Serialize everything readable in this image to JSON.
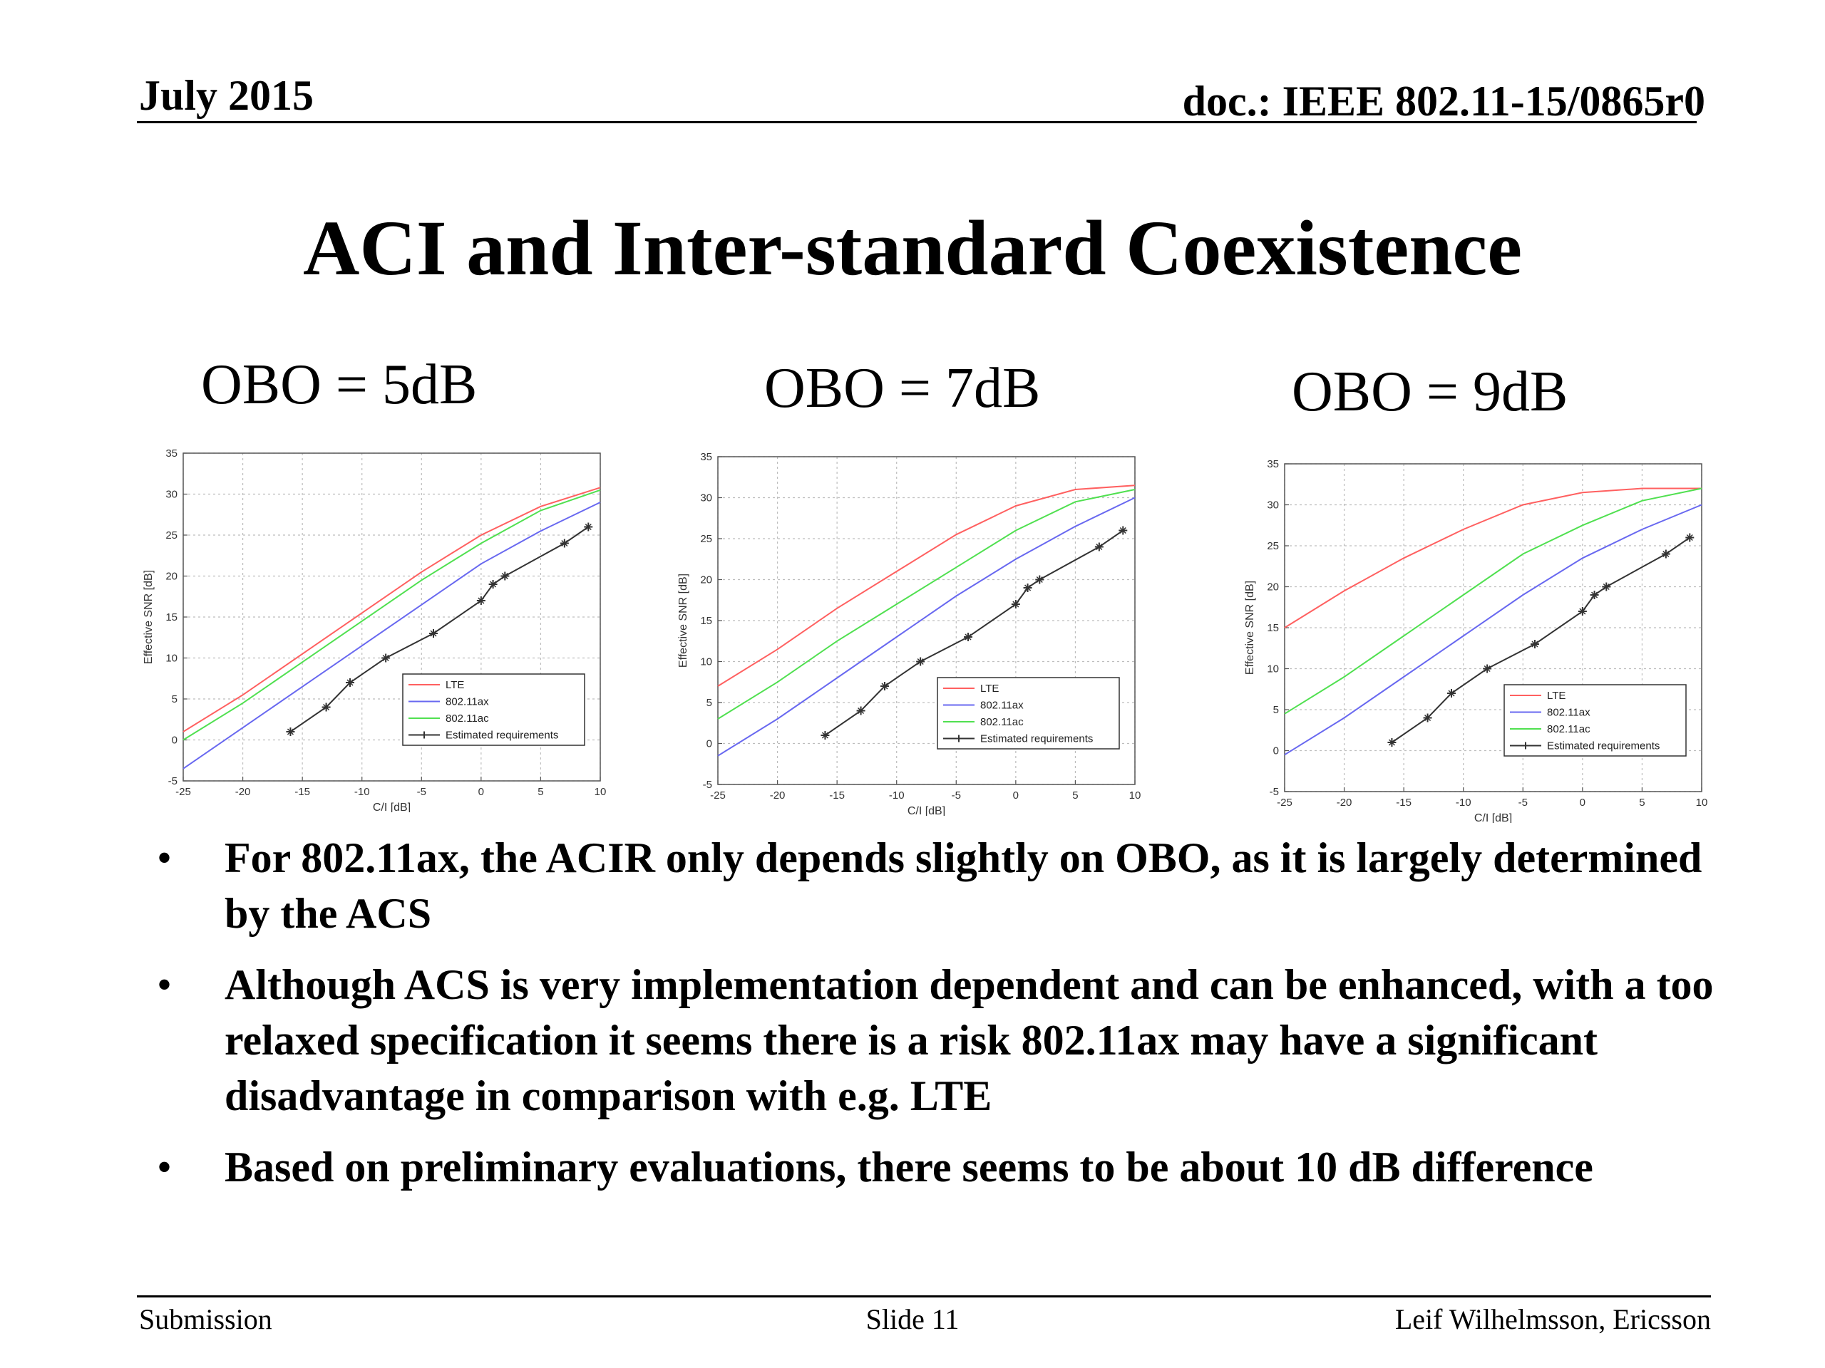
{
  "header": {
    "date": "July 2015",
    "doc": "doc.: IEEE 802.11-15/0865r0"
  },
  "title": "ACI and Inter-standard Coexistence",
  "panels": [
    {
      "heading": "OBO = 5dB"
    },
    {
      "heading": "OBO = 7dB"
    },
    {
      "heading": "OBO = 9dB"
    }
  ],
  "chart_data": [
    {
      "type": "line",
      "title": "OBO = 5dB",
      "xlabel": "C/I [dB]",
      "ylabel": "Effective SNR [dB]",
      "xlim": [
        -25,
        10
      ],
      "ylim": [
        -5,
        35
      ],
      "xticks": [
        -25,
        -20,
        -15,
        -10,
        -5,
        0,
        5,
        10
      ],
      "yticks": [
        -5,
        0,
        5,
        10,
        15,
        20,
        25,
        30,
        35
      ],
      "grid": true,
      "legend_position": "lower-right",
      "series": [
        {
          "name": "LTE",
          "color": "#ff6060",
          "marker": "none",
          "x": [
            -25,
            -20,
            -15,
            -10,
            -5,
            0,
            5,
            10
          ],
          "y": [
            1,
            5.5,
            10.5,
            15.5,
            20.5,
            25,
            28.5,
            30.8
          ]
        },
        {
          "name": "802.11ax",
          "color": "#6868f0",
          "marker": "none",
          "x": [
            -25,
            -20,
            -15,
            -10,
            -5,
            0,
            5,
            10
          ],
          "y": [
            -3.5,
            1.5,
            6.5,
            11.5,
            16.5,
            21.5,
            25.5,
            29
          ]
        },
        {
          "name": "802.11ac",
          "color": "#50e050",
          "marker": "none",
          "x": [
            -25,
            -20,
            -15,
            -10,
            -5,
            0,
            5,
            10
          ],
          "y": [
            0,
            4.5,
            9.5,
            14.5,
            19.5,
            24,
            28,
            30.5
          ]
        },
        {
          "name": "Estimated requirements",
          "color": "#333333",
          "marker": "star",
          "x": [
            -16,
            -13,
            -11,
            -8,
            -4,
            0,
            1,
            2,
            7,
            9
          ],
          "y": [
            1,
            4,
            7,
            10,
            13,
            17,
            19,
            20,
            24,
            26
          ]
        }
      ]
    },
    {
      "type": "line",
      "title": "OBO = 7dB",
      "xlabel": "C/I [dB]",
      "ylabel": "Effective SNR [dB]",
      "xlim": [
        -25,
        10
      ],
      "ylim": [
        -5,
        35
      ],
      "xticks": [
        -25,
        -20,
        -15,
        -10,
        -5,
        0,
        5,
        10
      ],
      "yticks": [
        -5,
        0,
        5,
        10,
        15,
        20,
        25,
        30,
        35
      ],
      "grid": true,
      "legend_position": "lower-right",
      "series": [
        {
          "name": "LTE",
          "color": "#ff6060",
          "marker": "none",
          "x": [
            -25,
            -20,
            -15,
            -10,
            -5,
            0,
            5,
            10
          ],
          "y": [
            7,
            11.5,
            16.5,
            21,
            25.5,
            29,
            31,
            31.5
          ]
        },
        {
          "name": "802.11ax",
          "color": "#6868f0",
          "marker": "none",
          "x": [
            -25,
            -20,
            -15,
            -10,
            -5,
            0,
            5,
            10
          ],
          "y": [
            -1.5,
            3,
            8,
            13,
            18,
            22.5,
            26.5,
            30
          ]
        },
        {
          "name": "802.11ac",
          "color": "#50e050",
          "marker": "none",
          "x": [
            -25,
            -20,
            -15,
            -10,
            -5,
            0,
            5,
            10
          ],
          "y": [
            3,
            7.5,
            12.5,
            17,
            21.5,
            26,
            29.5,
            31
          ]
        },
        {
          "name": "Estimated requirements",
          "color": "#333333",
          "marker": "star",
          "x": [
            -16,
            -13,
            -11,
            -8,
            -4,
            0,
            1,
            2,
            7,
            9
          ],
          "y": [
            1,
            4,
            7,
            10,
            13,
            17,
            19,
            20,
            24,
            26
          ]
        }
      ]
    },
    {
      "type": "line",
      "title": "OBO = 9dB",
      "xlabel": "C/I [dB]",
      "ylabel": "Effective SNR [dB]",
      "xlim": [
        -25,
        10
      ],
      "ylim": [
        -5,
        35
      ],
      "xticks": [
        -25,
        -20,
        -15,
        -10,
        -5,
        0,
        5,
        10
      ],
      "yticks": [
        -5,
        0,
        5,
        10,
        15,
        20,
        25,
        30,
        35
      ],
      "grid": true,
      "legend_position": "lower-right",
      "series": [
        {
          "name": "LTE",
          "color": "#ff6060",
          "marker": "none",
          "x": [
            -25,
            -20,
            -15,
            -10,
            -5,
            0,
            5,
            10
          ],
          "y": [
            15,
            19.5,
            23.5,
            27,
            30,
            31.5,
            32,
            32
          ]
        },
        {
          "name": "802.11ax",
          "color": "#6868f0",
          "marker": "none",
          "x": [
            -25,
            -20,
            -15,
            -10,
            -5,
            0,
            5,
            10
          ],
          "y": [
            -0.5,
            4,
            9,
            14,
            19,
            23.5,
            27,
            30
          ]
        },
        {
          "name": "802.11ac",
          "color": "#50e050",
          "marker": "none",
          "x": [
            -25,
            -20,
            -15,
            -10,
            -5,
            0,
            5,
            10
          ],
          "y": [
            4.5,
            9,
            14,
            19,
            24,
            27.5,
            30.5,
            32
          ]
        },
        {
          "name": "Estimated requirements",
          "color": "#333333",
          "marker": "star",
          "x": [
            -16,
            -13,
            -11,
            -8,
            -4,
            0,
            1,
            2,
            7,
            9
          ],
          "y": [
            1,
            4,
            7,
            10,
            13,
            17,
            19,
            20,
            24,
            26
          ]
        }
      ]
    }
  ],
  "bullets": [
    "For 802.11ax, the ACIR only depends slightly on OBO, as it is largely determined by the ACS",
    "Although ACS is very implementation dependent and can be enhanced, with a too relaxed specification it seems there is a risk 802.11ax may have a significant disadvantage in comparison with e.g. LTE",
    "Based on preliminary evaluations, there seems to be about 10 dB difference"
  ],
  "bullet_symbol": "•",
  "footer": {
    "left": "Submission",
    "center": "Slide 11",
    "right": "Leif Wilhelmsson, Ericsson"
  }
}
